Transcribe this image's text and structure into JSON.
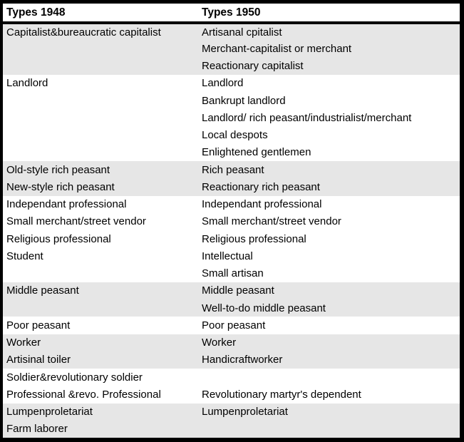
{
  "table": {
    "header": {
      "col1": "Types 1948",
      "col2": "Types 1950"
    },
    "colors": {
      "shaded_row_bg": "#e6e6e6",
      "border": "#000000",
      "text": "#000000",
      "header_bg": "#ffffff"
    },
    "groups": [
      {
        "shaded": true,
        "rows": [
          {
            "c1948": "Capitalist&bureaucratic capitalist",
            "c1950": "Artisanal cpitalist"
          },
          {
            "c1948": "",
            "c1950": "Merchant-capitalist or merchant"
          },
          {
            "c1948": "",
            "c1950": "Reactionary capitalist"
          }
        ]
      },
      {
        "shaded": false,
        "rows": [
          {
            "c1948": "Landlord",
            "c1950": "Landlord"
          },
          {
            "c1948": "",
            "c1950": "Bankrupt landlord"
          },
          {
            "c1948": "",
            "c1950": "Landlord/ rich peasant/industrialist/merchant"
          },
          {
            "c1948": "",
            "c1950": "Local despots"
          },
          {
            "c1948": "",
            "c1950": "Enlightened gentlemen"
          }
        ]
      },
      {
        "shaded": true,
        "rows": [
          {
            "c1948": "Old-style rich peasant",
            "c1950": "Rich peasant"
          },
          {
            "c1948": "New-style rich peasant",
            "c1950": "Reactionary rich peasant"
          }
        ]
      },
      {
        "shaded": false,
        "rows": [
          {
            "c1948": "Independant professional",
            "c1950": "Independant professional"
          },
          {
            "c1948": "Small merchant/street vendor",
            "c1950": "Small merchant/street vendor"
          },
          {
            "c1948": "Religious professional",
            "c1950": "Religious professional"
          },
          {
            "c1948": "Student",
            "c1950": "Intellectual"
          },
          {
            "c1948": "",
            "c1950": "Small artisan"
          }
        ]
      },
      {
        "shaded": true,
        "rows": [
          {
            "c1948": "Middle peasant",
            "c1950": "Middle peasant"
          },
          {
            "c1948": "",
            "c1950": "Well-to-do middle peasant"
          }
        ]
      },
      {
        "shaded": false,
        "rows": [
          {
            "c1948": "Poor peasant",
            "c1950": "Poor peasant"
          }
        ]
      },
      {
        "shaded": true,
        "rows": [
          {
            "c1948": "Worker",
            "c1950": "Worker"
          },
          {
            "c1948": "Artisinal toiler",
            "c1950": "Handicraftworker"
          }
        ]
      },
      {
        "shaded": false,
        "rows": [
          {
            "c1948": "Soldier&revolutionary soldier",
            "c1950": ""
          },
          {
            "c1948": "Professional &revo. Professional",
            "c1950": "Revolutionary martyr's dependent"
          }
        ]
      },
      {
        "shaded": true,
        "rows": [
          {
            "c1948": "Lumpenproletariat",
            "c1950": "Lumpenproletariat"
          },
          {
            "c1948": "Farm laborer",
            "c1950": ""
          }
        ]
      }
    ]
  }
}
